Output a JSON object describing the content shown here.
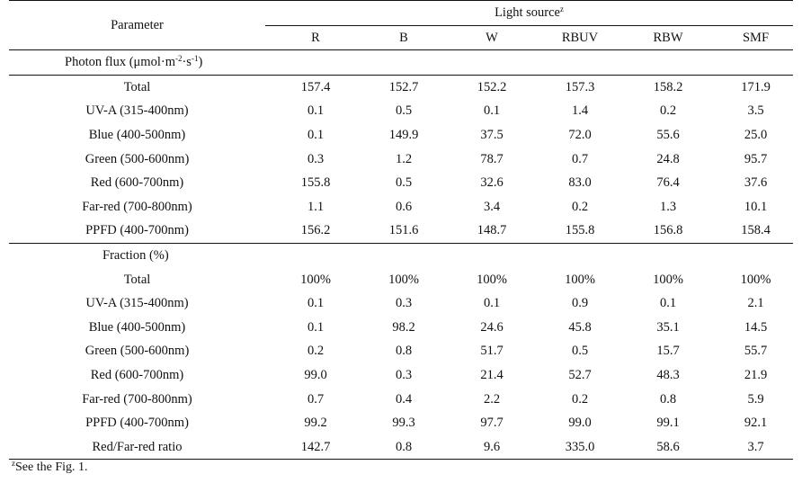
{
  "header": {
    "parameter_label": "Parameter",
    "light_source_label": "Light source",
    "light_source_sup": "z",
    "columns": [
      "R",
      "B",
      "W",
      "RBUV",
      "RBW",
      "SMF"
    ]
  },
  "photon_flux": {
    "section_label_prefix": "Photon flux (μmol·m",
    "unit_sup1": "-2",
    "unit_mid": "·s",
    "unit_sup2": "-1",
    "unit_suffix": ")",
    "rows": [
      {
        "label": "Total",
        "values": [
          "157.4",
          "152.7",
          "152.2",
          "157.3",
          "158.2",
          "171.9"
        ]
      },
      {
        "label": "UV-A (315-400nm)",
        "values": [
          "0.1",
          "0.5",
          "0.1",
          "1.4",
          "0.2",
          "3.5"
        ]
      },
      {
        "label": "Blue (400-500nm)",
        "values": [
          "0.1",
          "149.9",
          "37.5",
          "72.0",
          "55.6",
          "25.0"
        ]
      },
      {
        "label": "Green (500-600nm)",
        "values": [
          "0.3",
          "1.2",
          "78.7",
          "0.7",
          "24.8",
          "95.7"
        ]
      },
      {
        "label": "Red (600-700nm)",
        "values": [
          "155.8",
          "0.5",
          "32.6",
          "83.0",
          "76.4",
          "37.6"
        ]
      },
      {
        "label": "Far-red (700-800nm)",
        "values": [
          "1.1",
          "0.6",
          "3.4",
          "0.2",
          "1.3",
          "10.1"
        ]
      },
      {
        "label": "PPFD (400-700nm)",
        "values": [
          "156.2",
          "151.6",
          "148.7",
          "155.8",
          "156.8",
          "158.4"
        ]
      }
    ]
  },
  "fraction": {
    "section_label": "Fraction (%)",
    "rows": [
      {
        "label": "Total",
        "values": [
          "100%",
          "100%",
          "100%",
          "100%",
          "100%",
          "100%"
        ]
      },
      {
        "label": "UV-A (315-400nm)",
        "values": [
          "0.1",
          "0.3",
          "0.1",
          "0.9",
          "0.1",
          "2.1"
        ]
      },
      {
        "label": "Blue (400-500nm)",
        "values": [
          "0.1",
          "98.2",
          "24.6",
          "45.8",
          "35.1",
          "14.5"
        ]
      },
      {
        "label": "Green (500-600nm)",
        "values": [
          "0.2",
          "0.8",
          "51.7",
          "0.5",
          "15.7",
          "55.7"
        ]
      },
      {
        "label": "Red (600-700nm)",
        "values": [
          "99.0",
          "0.3",
          "21.4",
          "52.7",
          "48.3",
          "21.9"
        ]
      },
      {
        "label": "Far-red (700-800nm)",
        "values": [
          "0.7",
          "0.4",
          "2.2",
          "0.2",
          "0.8",
          "5.9"
        ]
      },
      {
        "label": "PPFD (400-700nm)",
        "values": [
          "99.2",
          "99.3",
          "97.7",
          "99.0",
          "99.1",
          "92.1"
        ]
      },
      {
        "label": "Red/Far-red ratio",
        "values": [
          "142.7",
          "0.8",
          "9.6",
          "335.0",
          "58.6",
          "3.7"
        ]
      }
    ]
  },
  "footnote": {
    "sup": "z",
    "text": "See the Fig. 1."
  }
}
